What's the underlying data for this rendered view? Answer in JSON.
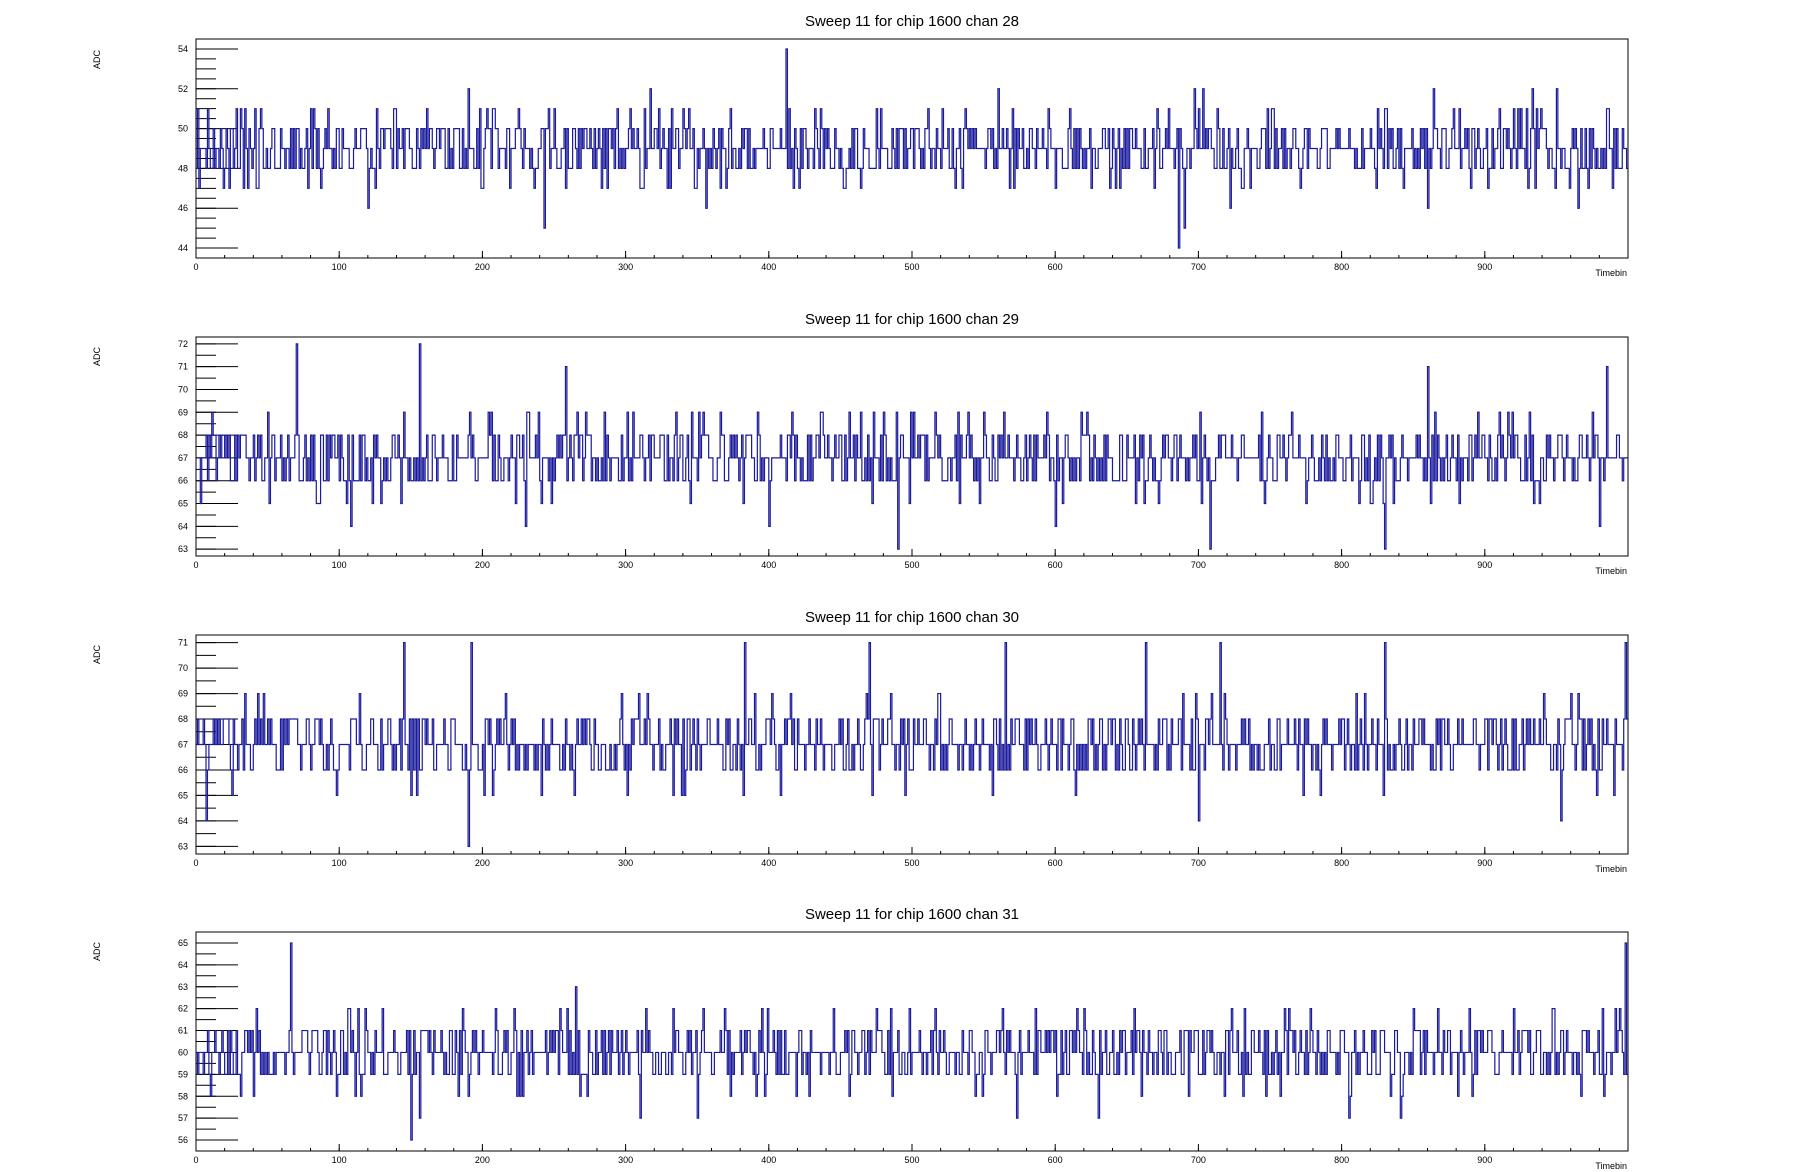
{
  "page": {
    "background": "#ffffff"
  },
  "style": {
    "line_color": "#1a1a9c",
    "axis_color": "#000000"
  },
  "chart_data": [
    {
      "type": "line",
      "title": "Sweep 11 for chip 1600 chan 28",
      "xlabel": "Timebin",
      "ylabel": "ADC",
      "xlim": [
        0,
        1000
      ],
      "ylim": [
        43.5,
        54.5
      ],
      "x_ticks": [
        0,
        100,
        200,
        300,
        400,
        500,
        600,
        700,
        800,
        900
      ],
      "y_ticks": [
        44,
        46,
        48,
        50,
        52,
        54
      ],
      "grid": false,
      "legend": "none",
      "series": [
        {
          "description": "one ADC value per timebin 0-999, step histogram",
          "baseline": 49,
          "range": [
            44,
            54
          ],
          "points": [
            [
              0,
              48
            ],
            [
              45,
              51
            ],
            [
              120,
              46
            ],
            [
              190,
              52
            ],
            [
              243,
              45
            ],
            [
              317,
              52
            ],
            [
              356,
              46
            ],
            [
              412,
              54
            ],
            [
              414,
              51
            ],
            [
              560,
              52
            ],
            [
              686,
              44
            ],
            [
              690,
              45
            ],
            [
              697,
              52
            ],
            [
              722,
              46
            ],
            [
              950,
              52
            ],
            [
              965,
              46
            ],
            [
              985,
              51
            ]
          ]
        }
      ]
    },
    {
      "type": "line",
      "title": "Sweep 11 for chip 1600 chan 29",
      "xlabel": "Timebin",
      "ylabel": "ADC",
      "xlim": [
        0,
        1000
      ],
      "ylim": [
        62.7,
        72.3
      ],
      "x_ticks": [
        0,
        100,
        200,
        300,
        400,
        500,
        600,
        700,
        800,
        900
      ],
      "y_ticks": [
        63,
        64,
        65,
        66,
        67,
        68,
        69,
        70,
        71,
        72
      ],
      "grid": false,
      "legend": "none",
      "series": [
        {
          "description": "one ADC value per timebin 0-999, step histogram",
          "baseline": 67,
          "range": [
            63,
            72
          ],
          "points": [
            [
              0,
              67
            ],
            [
              70,
              72
            ],
            [
              108,
              64
            ],
            [
              156,
              72
            ],
            [
              230,
              64
            ],
            [
              258,
              71
            ],
            [
              400,
              64
            ],
            [
              490,
              63
            ],
            [
              600,
              64
            ],
            [
              708,
              63
            ],
            [
              830,
              63
            ],
            [
              860,
              71
            ],
            [
              980,
              64
            ],
            [
              985,
              71
            ]
          ]
        }
      ]
    },
    {
      "type": "line",
      "title": "Sweep 11 for chip 1600 chan 30",
      "xlabel": "Timebin",
      "ylabel": "ADC",
      "xlim": [
        0,
        1000
      ],
      "ylim": [
        62.7,
        71.3
      ],
      "x_ticks": [
        0,
        100,
        200,
        300,
        400,
        500,
        600,
        700,
        800,
        900
      ],
      "y_ticks": [
        63,
        64,
        65,
        66,
        67,
        68,
        69,
        70,
        71
      ],
      "grid": false,
      "legend": "none",
      "series": [
        {
          "description": "one ADC value per timebin 0-999, step histogram",
          "baseline": 67,
          "range": [
            63,
            71
          ],
          "points": [
            [
              0,
              67
            ],
            [
              7,
              64
            ],
            [
              145,
              71
            ],
            [
              190,
              63
            ],
            [
              192,
              71
            ],
            [
              383,
              71
            ],
            [
              470,
              71
            ],
            [
              565,
              71
            ],
            [
              663,
              71
            ],
            [
              700,
              64
            ],
            [
              715,
              71
            ],
            [
              830,
              71
            ],
            [
              953,
              64
            ],
            [
              998,
              71
            ]
          ]
        }
      ]
    },
    {
      "type": "line",
      "title": "Sweep 11 for chip 1600 chan 31",
      "xlabel": "Timebin",
      "ylabel": "ADC",
      "xlim": [
        0,
        1000
      ],
      "ylim": [
        55.5,
        65.5
      ],
      "x_ticks": [
        0,
        100,
        200,
        300,
        400,
        500,
        600,
        700,
        800,
        900
      ],
      "y_ticks": [
        56,
        57,
        58,
        59,
        60,
        61,
        62,
        63,
        64,
        65
      ],
      "grid": false,
      "legend": "none",
      "series": [
        {
          "description": "one ADC value per timebin 0-999, step histogram",
          "baseline": 60,
          "range": [
            56,
            65
          ],
          "points": [
            [
              0,
              60
            ],
            [
              66,
              65
            ],
            [
              150,
              56
            ],
            [
              156,
              57
            ],
            [
              310,
              57
            ],
            [
              350,
              57
            ],
            [
              573,
              57
            ],
            [
              805,
              57
            ],
            [
              998,
              65
            ]
          ]
        }
      ]
    }
  ]
}
